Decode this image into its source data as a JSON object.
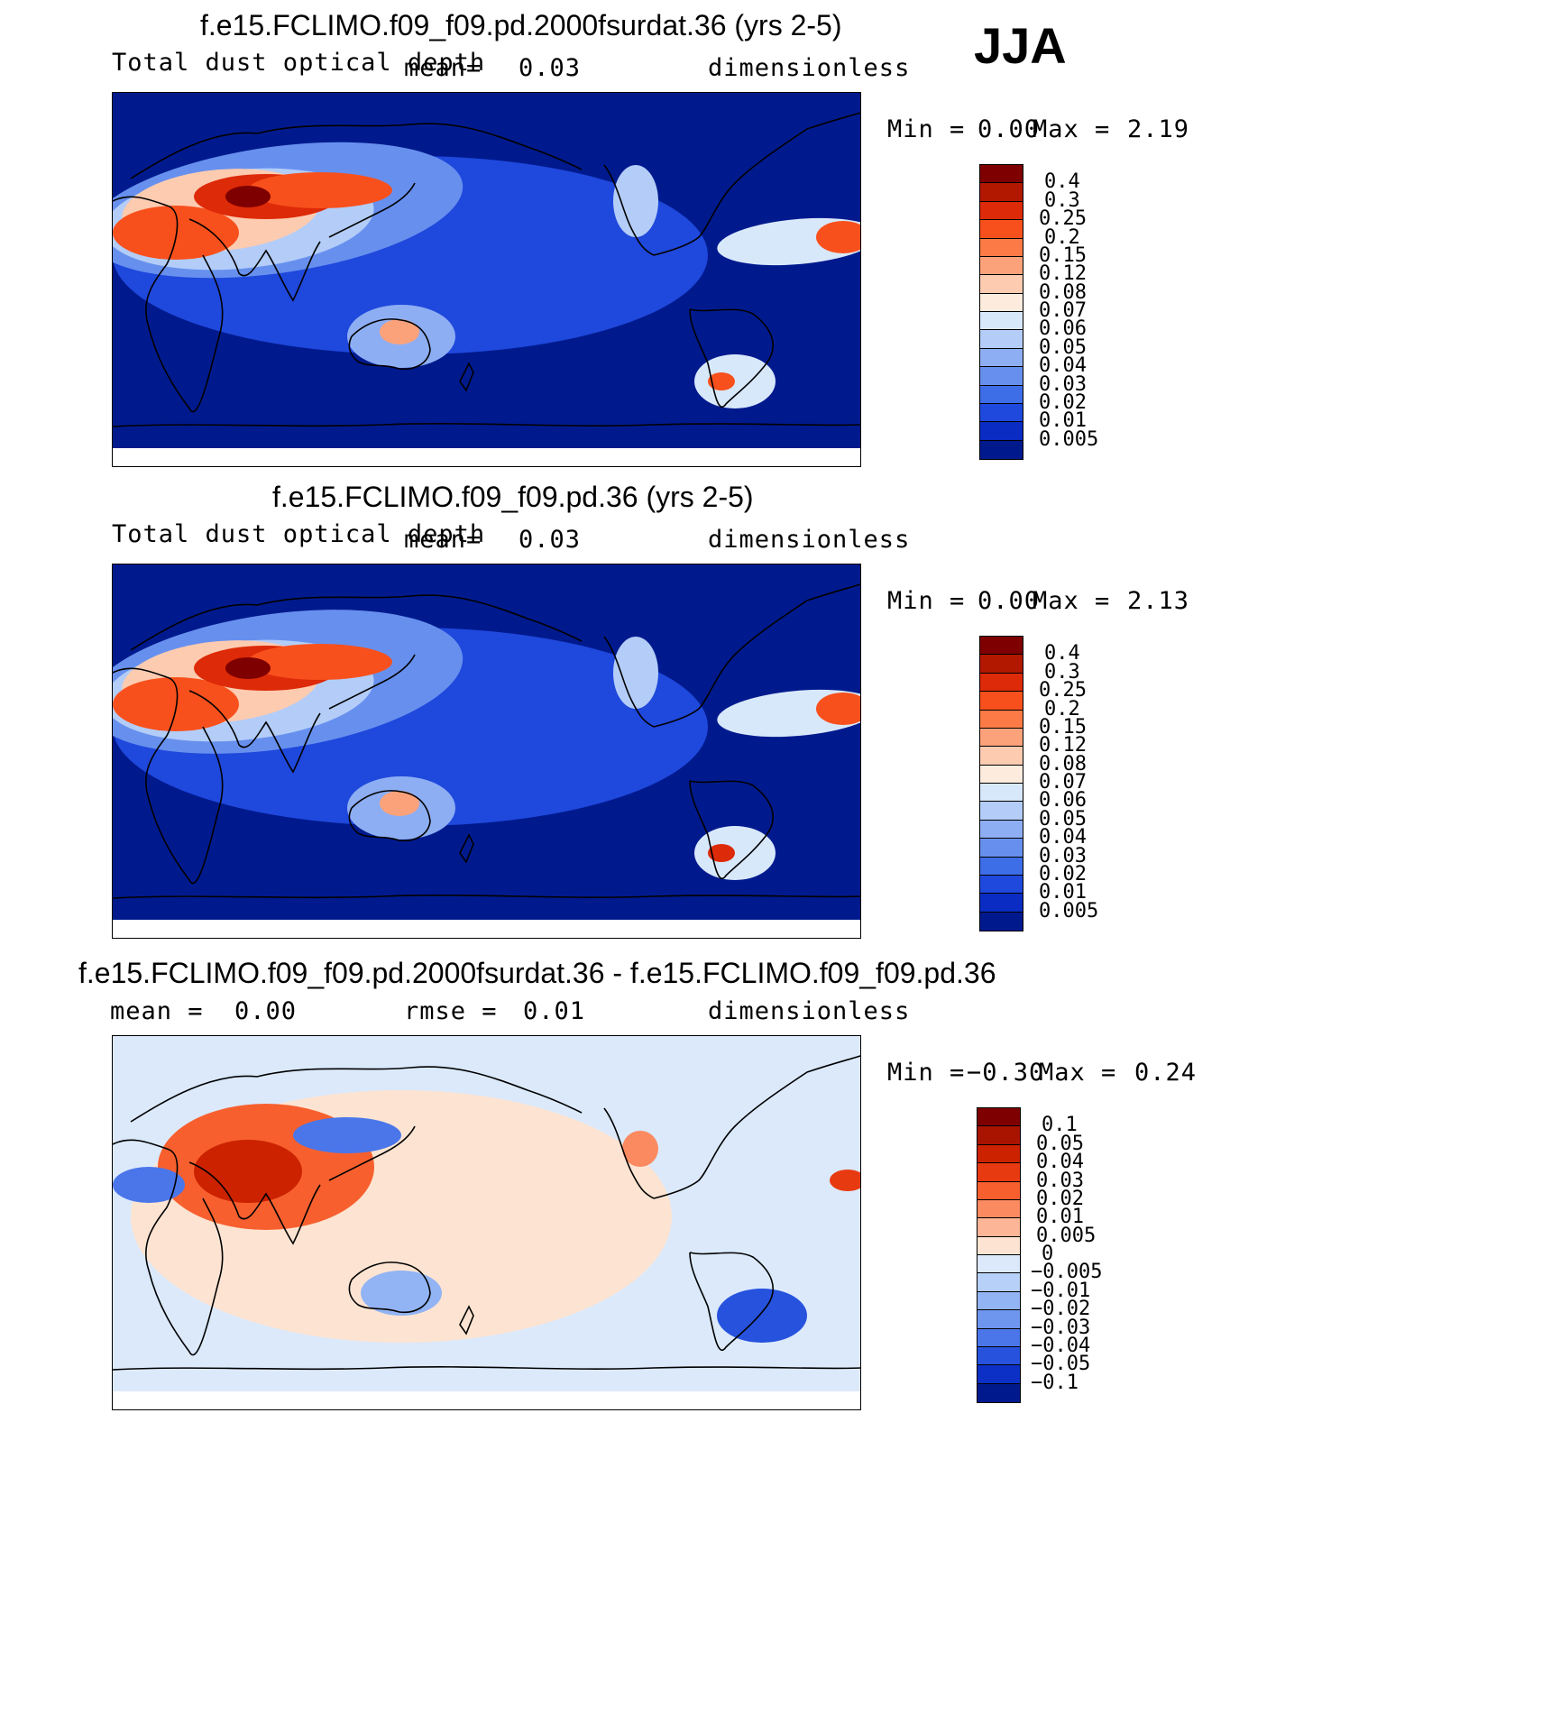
{
  "season": "JJA",
  "panels": [
    {
      "id": "p1",
      "title": "f.e15.FCLIMO.f09_f09.pd.2000fsurdat.36 (yrs 2-5)",
      "left_label": "Total dust optical depth",
      "mean_label": "mean=",
      "mean_value": "0.03",
      "units": "dimensionless",
      "min_label": "Min =",
      "min_value": "0.00",
      "max_label": "Max =",
      "max_value": "2.19"
    },
    {
      "id": "p2",
      "title": "f.e15.FCLIMO.f09_f09.pd.36 (yrs 2-5)",
      "left_label": "Total dust optical depth",
      "mean_label": "mean=",
      "mean_value": "0.03",
      "units": "dimensionless",
      "min_label": "Min =",
      "min_value": "0.00",
      "max_label": "Max =",
      "max_value": "2.13"
    },
    {
      "id": "p3",
      "title": "f.e15.FCLIMO.f09_f09.pd.2000fsurdat.36 - f.e15.FCLIMO.f09_f09.pd.36",
      "mean_label": "mean =",
      "mean_value": "0.00",
      "rmse_label": "rmse =",
      "rmse_value": "0.01",
      "units": "dimensionless",
      "min_label": "Min =",
      "min_value": "−0.30",
      "max_label": "Max =",
      "max_value": "0.24"
    }
  ],
  "chart_data": [
    {
      "type": "heatmap",
      "title": "f.e15.FCLIMO.f09_f09.pd.2000fsurdat.36 (yrs 2-5)",
      "variable": "Total dust optical depth",
      "units": "dimensionless",
      "mean": 0.03,
      "min": 0.0,
      "max": 2.19,
      "colorbar_levels": [
        "0.4",
        "0.3",
        "0.25",
        "0.2",
        "0.15",
        "0.12",
        "0.08",
        "0.07",
        "0.06",
        "0.05",
        "0.04",
        "0.03",
        "0.02",
        "0.01",
        "0.005"
      ],
      "colorbar_colors": [
        "#7f0000",
        "#b21800",
        "#dd2a08",
        "#f8501c",
        "#fb7a45",
        "#fca27a",
        "#fdcbb0",
        "#fdecde",
        "#d8e8fb",
        "#b3cdf8",
        "#8daef3",
        "#6790ee",
        "#3e6de8",
        "#1f48dc",
        "#0a2cc2",
        "#001a8e"
      ]
    },
    {
      "type": "heatmap",
      "title": "f.e15.FCLIMO.f09_f09.pd.36 (yrs 2-5)",
      "variable": "Total dust optical depth",
      "units": "dimensionless",
      "mean": 0.03,
      "min": 0.0,
      "max": 2.13,
      "colorbar_levels": [
        "0.4",
        "0.3",
        "0.25",
        "0.2",
        "0.15",
        "0.12",
        "0.08",
        "0.07",
        "0.06",
        "0.05",
        "0.04",
        "0.03",
        "0.02",
        "0.01",
        "0.005"
      ],
      "colorbar_colors": [
        "#7f0000",
        "#b21800",
        "#dd2a08",
        "#f8501c",
        "#fb7a45",
        "#fca27a",
        "#fdcbb0",
        "#fdecde",
        "#d8e8fb",
        "#b3cdf8",
        "#8daef3",
        "#6790ee",
        "#3e6de8",
        "#1f48dc",
        "#0a2cc2",
        "#001a8e"
      ]
    },
    {
      "type": "heatmap",
      "title": "f.e15.FCLIMO.f09_f09.pd.2000fsurdat.36 - f.e15.FCLIMO.f09_f09.pd.36",
      "units": "dimensionless",
      "mean": 0.0,
      "rmse": 0.01,
      "min": -0.3,
      "max": 0.24,
      "colorbar_levels": [
        "0.1",
        "0.05",
        "0.04",
        "0.03",
        "0.02",
        "0.01",
        "0.005",
        "0",
        "−0.005",
        "−0.01",
        "−0.02",
        "−0.03",
        "−0.04",
        "−0.05",
        "−0.1"
      ],
      "colorbar_colors": [
        "#7f0000",
        "#a81400",
        "#cc2200",
        "#e83a10",
        "#f7602e",
        "#fb8a60",
        "#fcb596",
        "#fde4d2",
        "#dbe9fb",
        "#b7d0f8",
        "#92b4f4",
        "#6e96ef",
        "#4a76ea",
        "#2652de",
        "#0c30c6",
        "#001a8e"
      ]
    }
  ]
}
